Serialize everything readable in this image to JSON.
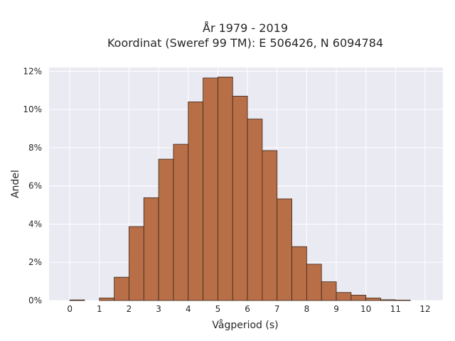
{
  "chart_data": {
    "type": "bar",
    "title_line1": "År 1979 - 2019",
    "title_line2": "Koordinat (Sweref 99 TM): E 506426, N 6094784",
    "xlabel": "Vågperiod (s)",
    "ylabel": "Andel",
    "xlim": [
      -0.7,
      12.6
    ],
    "ylim": [
      0,
      12.2
    ],
    "grid": true,
    "xticks": [
      0,
      1,
      2,
      3,
      4,
      5,
      6,
      7,
      8,
      9,
      10,
      11,
      12
    ],
    "xtick_labels": [
      "0",
      "1",
      "2",
      "3",
      "4",
      "5",
      "6",
      "7",
      "8",
      "9",
      "10",
      "11",
      "12"
    ],
    "yticks": [
      0,
      2,
      4,
      6,
      8,
      10,
      12
    ],
    "ytick_labels": [
      "0%",
      "2%",
      "4%",
      "6%",
      "8%",
      "10%",
      "12%"
    ],
    "bin_width": 0.5,
    "bin_starts": [
      0,
      0.5,
      1,
      1.5,
      2,
      2.5,
      3,
      3.5,
      4,
      4.5,
      5,
      5.5,
      6,
      6.5,
      7,
      7.5,
      8,
      8.5,
      9,
      9.5,
      10,
      10.5,
      11
    ],
    "values": [
      0.03,
      0.0,
      0.13,
      1.22,
      3.87,
      5.38,
      7.4,
      8.18,
      10.4,
      11.65,
      11.7,
      10.7,
      9.5,
      7.85,
      5.32,
      2.82,
      1.9,
      0.98,
      0.42,
      0.28,
      0.13,
      0.04,
      0.02
    ],
    "colors": {
      "bar_fill": "#b86f48",
      "bar_edge": "#3a2416",
      "plot_bg": "#eaeaf2",
      "grid": "#ffffff"
    }
  }
}
